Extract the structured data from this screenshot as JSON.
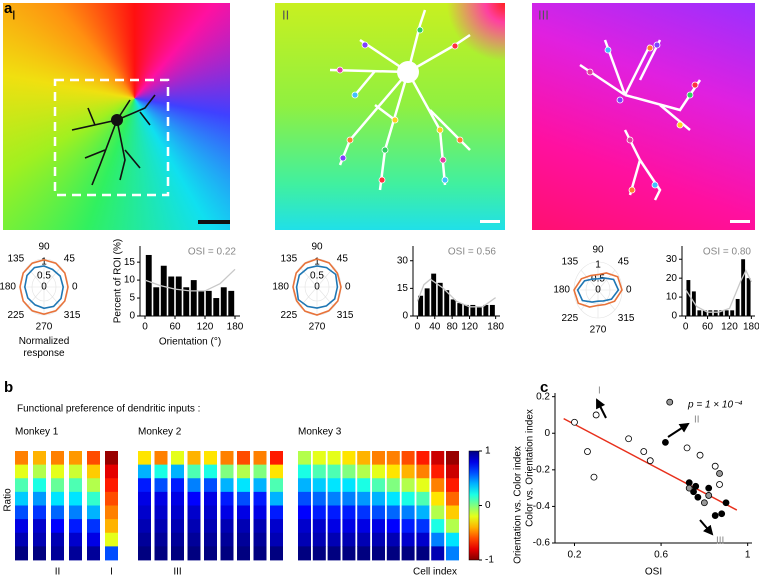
{
  "panel_labels": [
    "a",
    "b",
    "c"
  ],
  "images": [
    {
      "label": "I"
    },
    {
      "label": "II"
    },
    {
      "label": "III"
    }
  ],
  "chart_data": [
    {
      "type": "polar",
      "theta": [
        0,
        30,
        60,
        90,
        120,
        150,
        180,
        210,
        240,
        270,
        300,
        330
      ],
      "rlim": [
        0,
        1
      ],
      "rticks": [
        0,
        0.5,
        1
      ],
      "angle_ticks": [
        0,
        45,
        90,
        135,
        180,
        225,
        270,
        315
      ],
      "series": [
        {
          "color": "#e8733a",
          "values": [
            1,
            1,
            0.98,
            0.97,
            0.98,
            1,
            1,
            1,
            0.98,
            0.97,
            0.98,
            1
          ]
        },
        {
          "color": "#1f77b4",
          "values": [
            0.8,
            0.78,
            0.72,
            0.75,
            0.8,
            0.82,
            0.8,
            0.78,
            0.74,
            0.76,
            0.8,
            0.82
          ]
        }
      ],
      "label": "Normalized response"
    },
    {
      "type": "histogram",
      "bins": [
        0,
        15,
        30,
        45,
        60,
        75,
        90,
        105,
        120,
        135,
        150,
        165,
        180
      ],
      "counts": [
        17,
        8,
        14,
        11,
        11,
        8,
        10,
        7,
        7,
        5,
        8,
        7
      ],
      "color": "#000000",
      "xlim": [
        -10,
        190
      ],
      "xticks": [
        0,
        60,
        120,
        180
      ],
      "ylim": [
        0,
        19.5
      ],
      "yticks": [
        0,
        5,
        10,
        15
      ],
      "xlabel": "Orientation (°)",
      "ylabel": "Percent of ROI (%)",
      "annotation": "OSI = 0.22",
      "fit": {
        "color": "#c8c8c8",
        "x": [
          0,
          30,
          60,
          90,
          120,
          150,
          180
        ],
        "y": [
          10,
          8.5,
          7.5,
          7,
          7,
          9,
          13
        ]
      }
    },
    {
      "type": "polar",
      "theta": [
        0,
        30,
        60,
        90,
        120,
        150,
        180,
        210,
        240,
        270,
        300,
        330
      ],
      "rlim": [
        0,
        1
      ],
      "rticks": [
        0,
        0.5,
        1
      ],
      "angle_ticks": [
        0,
        45,
        90,
        135,
        180,
        225,
        270,
        315
      ],
      "series": [
        {
          "color": "#e8733a",
          "values": [
            1,
            0.98,
            1,
            1,
            0.98,
            1,
            1,
            0.98,
            1,
            1,
            0.98,
            1
          ]
        },
        {
          "color": "#1f77b4",
          "values": [
            0.85,
            0.9,
            0.8,
            0.75,
            0.78,
            0.85,
            0.85,
            0.9,
            0.8,
            0.75,
            0.78,
            0.85
          ]
        }
      ]
    },
    {
      "type": "histogram",
      "bins": [
        0,
        15,
        30,
        45,
        60,
        75,
        90,
        105,
        120,
        135,
        150,
        165,
        180
      ],
      "counts": [
        11,
        15,
        23,
        18,
        14,
        9,
        7,
        6,
        6,
        5,
        6,
        6
      ],
      "color": "#000000",
      "xlim": [
        -10,
        190
      ],
      "xticks": [
        0,
        40,
        80,
        120,
        180
      ],
      "ylim": [
        0,
        38
      ],
      "yticks": [
        0,
        15,
        30
      ],
      "annotation": "OSI = 0.56",
      "fit": {
        "color": "#c8c8c8",
        "x": [
          0,
          15,
          30,
          60,
          90,
          120,
          150,
          180
        ],
        "y": [
          8,
          17,
          20,
          15,
          8,
          5,
          5,
          10
        ]
      }
    },
    {
      "type": "polar",
      "theta": [
        0,
        30,
        60,
        90,
        120,
        150,
        180,
        210,
        240,
        270,
        300,
        330
      ],
      "rlim": [
        0,
        1
      ],
      "rticks": [
        0,
        0.5,
        1
      ],
      "angle_ticks": [
        0,
        45,
        90,
        135,
        180,
        225,
        270,
        315
      ],
      "series": [
        {
          "color": "#e8733a",
          "values": [
            1,
            0.95,
            0.7,
            0.55,
            0.6,
            0.8,
            1,
            0.95,
            0.7,
            0.55,
            0.6,
            0.8
          ]
        },
        {
          "color": "#1f77b4",
          "values": [
            0.85,
            0.75,
            0.5,
            0.4,
            0.45,
            0.65,
            0.85,
            0.75,
            0.5,
            0.4,
            0.45,
            0.65
          ]
        }
      ]
    },
    {
      "type": "histogram",
      "bins": [
        0,
        15,
        30,
        45,
        60,
        75,
        90,
        105,
        120,
        135,
        150,
        165,
        180
      ],
      "counts": [
        19,
        13,
        3,
        3,
        3,
        3,
        3,
        3,
        3,
        9,
        30,
        20
      ],
      "color": "#000000",
      "xlim": [
        -10,
        190
      ],
      "xticks": [
        0,
        60,
        120,
        180
      ],
      "ylim": [
        0,
        37
      ],
      "yticks": [
        0,
        10,
        20,
        30
      ],
      "annotation": "OSI = 0.80",
      "fit": {
        "color": "#c8c8c8",
        "x": [
          0,
          30,
          60,
          90,
          120,
          150,
          165,
          180
        ],
        "y": [
          14,
          5,
          2,
          2,
          4,
          18,
          24,
          18
        ]
      }
    },
    {
      "type": "heatmap",
      "title": "Functional preference of dendritic inputs :",
      "ylabel": "Ratio",
      "xlabel": "Cell index",
      "colormap": "jet_r",
      "colorbar": {
        "label": "Orientation vs. Color index",
        "lim": [
          -1,
          1
        ],
        "ticks": [
          1,
          0,
          -1
        ]
      },
      "groups": [
        {
          "name": "Monkey 1",
          "categories": [
            null,
            null,
            "II",
            null,
            null,
            "I"
          ],
          "columns": [
            [
              -0.5,
              -0.2,
              0.1,
              0.35,
              0.6,
              0.8,
              0.9,
              1
            ],
            [
              -0.4,
              -0.1,
              0.2,
              0.45,
              0.65,
              0.85,
              0.9,
              1
            ],
            [
              -0.5,
              -0.2,
              0.05,
              0.3,
              0.55,
              0.75,
              0.9,
              0.95
            ],
            [
              -0.45,
              -0.15,
              0.1,
              0.3,
              0.5,
              0.7,
              0.85,
              0.95
            ],
            [
              -0.6,
              -0.35,
              -0.1,
              0.15,
              0.4,
              0.65,
              0.8,
              0.95
            ],
            [
              -0.95,
              -0.8,
              -0.7,
              -0.6,
              -0.5,
              -0.4,
              -0.2,
              0.6
            ]
          ]
        },
        {
          "name": "Monkey 2",
          "categories": [
            null,
            null,
            "III",
            null,
            null,
            null,
            null,
            null,
            null
          ],
          "columns": [
            [
              -0.3,
              0.4,
              0.7,
              0.8,
              0.85,
              0.9,
              0.95,
              1
            ],
            [
              -0.5,
              0.2,
              0.6,
              0.8,
              0.85,
              0.9,
              0.95,
              1
            ],
            [
              -0.2,
              0.4,
              0.7,
              0.8,
              0.85,
              0.9,
              0.95,
              1
            ],
            [
              -0.4,
              0.1,
              0.5,
              0.75,
              0.85,
              0.9,
              0.95,
              1
            ],
            [
              -0.3,
              0.2,
              0.6,
              0.8,
              0.85,
              0.9,
              0.95,
              1
            ],
            [
              -0.5,
              0,
              0.4,
              0.7,
              0.8,
              0.9,
              0.95,
              1
            ],
            [
              -0.6,
              -0.1,
              0.3,
              0.6,
              0.8,
              0.9,
              0.95,
              1
            ],
            [
              -0.5,
              0,
              0.4,
              0.7,
              0.8,
              0.9,
              0.95,
              1
            ],
            [
              -0.7,
              -0.3,
              0.1,
              0.4,
              0.7,
              0.85,
              0.9,
              1
            ]
          ]
        },
        {
          "name": "Monkey 3",
          "categories": [
            null,
            null,
            null,
            null,
            null,
            null,
            null,
            null,
            null,
            null,
            null
          ],
          "columns": [
            [
              -0.1,
              0.2,
              0.4,
              0.6,
              0.75,
              0.85,
              0.9,
              1
            ],
            [
              -0.2,
              0.1,
              0.35,
              0.55,
              0.7,
              0.85,
              0.9,
              1
            ],
            [
              -0.2,
              0.1,
              0.3,
              0.5,
              0.7,
              0.8,
              0.9,
              1
            ],
            [
              -0.3,
              0,
              0.3,
              0.5,
              0.7,
              0.8,
              0.9,
              1
            ],
            [
              -0.4,
              -0.1,
              0.2,
              0.45,
              0.65,
              0.8,
              0.9,
              1
            ],
            [
              -0.5,
              -0.2,
              0.1,
              0.4,
              0.6,
              0.8,
              0.9,
              1
            ],
            [
              -0.5,
              -0.3,
              0,
              0.3,
              0.55,
              0.75,
              0.9,
              1
            ],
            [
              -0.6,
              -0.4,
              -0.1,
              0.2,
              0.5,
              0.7,
              0.85,
              1
            ],
            [
              -0.7,
              -0.5,
              -0.2,
              0.1,
              0.4,
              0.65,
              0.85,
              1
            ],
            [
              -0.85,
              -0.7,
              -0.5,
              -0.3,
              -0.1,
              0.2,
              0.5,
              0.9
            ],
            [
              -0.95,
              -0.85,
              -0.7,
              -0.55,
              -0.35,
              -0.1,
              0.3,
              0.5
            ]
          ]
        }
      ]
    },
    {
      "type": "scatter",
      "xlabel": "OSI",
      "ylabel": "Color vs. Orientation index",
      "xlim": [
        0.11,
        1.02
      ],
      "xticks": [
        0.2,
        0.6,
        1
      ],
      "ylim": [
        -0.6,
        0.22
      ],
      "yticks": [
        0.2,
        0,
        -0.2,
        -0.4,
        -0.6
      ],
      "annotation": "p = 1 × 10⁻⁴",
      "point_labels": [
        "I",
        "II",
        "III"
      ],
      "series": [
        {
          "color": "#000000",
          "fill": "#000000",
          "x": [
            0.62,
            0.73,
            0.75,
            0.77,
            0.82,
            0.85,
            0.88,
            0.9,
            0.76
          ],
          "y": [
            -0.05,
            -0.27,
            -0.32,
            -0.35,
            -0.3,
            -0.45,
            -0.44,
            -0.38,
            -0.29
          ]
        },
        {
          "color": "#000000",
          "fill": "#ffffff",
          "x": [
            0.2,
            0.26,
            0.29,
            0.3,
            0.45,
            0.55,
            0.52,
            0.72,
            0.78,
            0.85,
            0.87
          ],
          "y": [
            0.06,
            -0.1,
            -0.24,
            0.1,
            -0.03,
            -0.15,
            -0.1,
            -0.08,
            -0.12,
            -0.18,
            -0.28
          ]
        },
        {
          "color": "#000000",
          "fill": "#999999",
          "x": [
            0.64,
            0.73,
            0.8,
            0.87,
            0.82
          ],
          "y": [
            0.17,
            -0.3,
            -0.38,
            -0.22,
            -0.34
          ]
        }
      ],
      "fit": {
        "color": "#e8301c",
        "x": [
          0.15,
          0.95
        ],
        "y": [
          0.08,
          -0.42
        ]
      }
    }
  ]
}
